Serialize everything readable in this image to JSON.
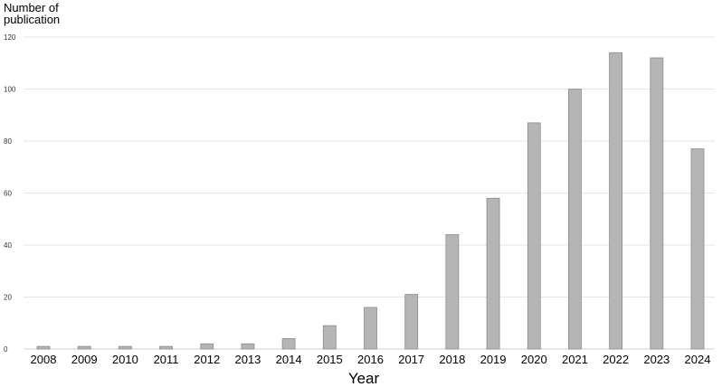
{
  "chart_data": {
    "type": "bar",
    "ylabel_lines": [
      "Number of",
      "publication"
    ],
    "xlabel": "Year",
    "ylim": [
      0,
      120
    ],
    "yticks": [
      0,
      20,
      40,
      60,
      80,
      100,
      120
    ],
    "grid": true,
    "categories": [
      "2008",
      "2009",
      "2010",
      "2011",
      "2012",
      "2013",
      "2014",
      "2015",
      "2016",
      "2017",
      "2018",
      "2019",
      "2020",
      "2021",
      "2022",
      "2023",
      "2024"
    ],
    "values": [
      1,
      1,
      1,
      1,
      2,
      2,
      4,
      9,
      16,
      21,
      44,
      58,
      87,
      100,
      114,
      112,
      77
    ],
    "bar_color": "#b5b5b5",
    "bar_edge_color": "#8a8a8a",
    "grid_color": "#e6e6e6"
  }
}
